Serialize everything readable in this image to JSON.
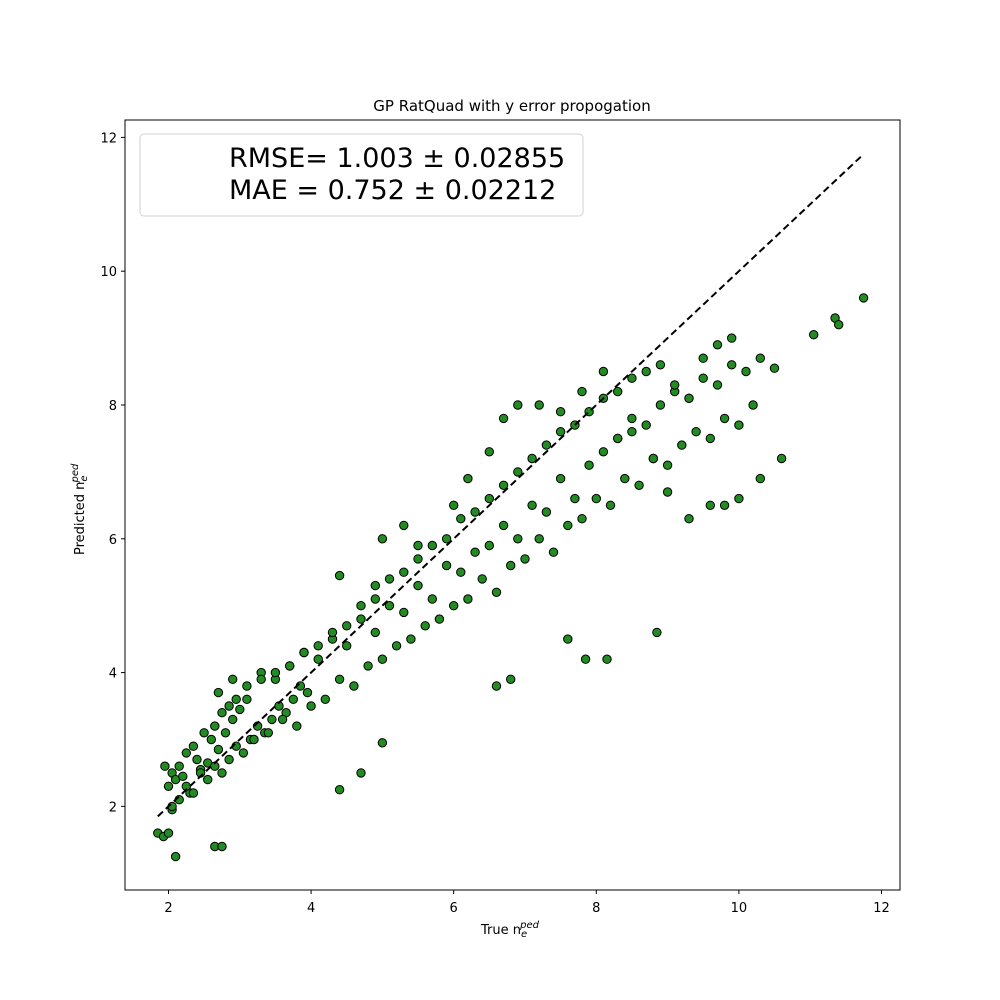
{
  "chart_data": {
    "type": "scatter",
    "title": "GP RatQuad with y error propogation",
    "xlabel": {
      "main": "True n",
      "sub": "e",
      "sup": "ped"
    },
    "ylabel": {
      "main": "Predicted n",
      "sub": "e",
      "sup": "ped"
    },
    "xlim": [
      1.39,
      12.26
    ],
    "ylim": [
      0.75,
      12.26
    ],
    "xticks": [
      2,
      4,
      6,
      8,
      10,
      12
    ],
    "yticks": [
      2,
      4,
      6,
      8,
      10,
      12
    ],
    "grid": false,
    "legend_placement": "top-left",
    "annotation": {
      "line1": "RMSE= 1.003 ± 0.02855",
      "line2": "MAE = 0.752 ± 0.02212"
    },
    "reference_line": {
      "style": "dashed",
      "color": "#000000",
      "x": [
        1.85,
        11.75
      ],
      "y": [
        1.85,
        11.75
      ]
    },
    "series": [
      {
        "marker_color": "#228B22",
        "edge_color": "#000000",
        "x": [
          1.85,
          1.93,
          1.95,
          2.0,
          2.05,
          2.05,
          2.1,
          2.15,
          2.2,
          2.25,
          2.3,
          2.35,
          2.4,
          2.45,
          2.5,
          2.55,
          2.6,
          2.65,
          2.7,
          2.75,
          2.8,
          2.85,
          2.9,
          2.95,
          3.0,
          2.05,
          2.15,
          2.25,
          2.35,
          2.45,
          2.55,
          2.65,
          2.75,
          2.85,
          2.95,
          3.05,
          3.15,
          3.25,
          3.35,
          3.45,
          3.55,
          3.65,
          3.75,
          3.85,
          3.95,
          2.7,
          2.9,
          3.1,
          3.3,
          3.5,
          3.7,
          3.9,
          4.1,
          4.3,
          4.5,
          4.7,
          4.9,
          5.1,
          5.3,
          5.5,
          5.7,
          5.9,
          6.1,
          6.3,
          6.5,
          6.7,
          6.9,
          7.1,
          7.3,
          7.5,
          7.7,
          7.9,
          8.1,
          8.3,
          8.5,
          8.7,
          8.9,
          9.1,
          9.3,
          9.5,
          9.7,
          9.9,
          10.1,
          10.3,
          10.5,
          3.2,
          3.4,
          3.6,
          3.8,
          4.0,
          4.2,
          4.4,
          4.6,
          4.8,
          5.0,
          5.2,
          5.4,
          5.6,
          5.8,
          6.0,
          6.2,
          6.4,
          6.6,
          6.8,
          7.0,
          7.2,
          7.4,
          7.6,
          7.8,
          8.0,
          8.2,
          8.4,
          8.6,
          8.8,
          9.0,
          9.2,
          9.4,
          9.6,
          9.8,
          10.0,
          10.2,
          3.1,
          3.3,
          3.5,
          3.7,
          3.9,
          4.1,
          4.3,
          4.5,
          4.7,
          4.9,
          5.1,
          5.3,
          5.5,
          5.7,
          5.9,
          6.1,
          6.3,
          6.5,
          6.7,
          6.9,
          7.1,
          7.3,
          7.5,
          7.7,
          7.9,
          8.1,
          8.3,
          8.5,
          8.7,
          8.9,
          9.1,
          9.3,
          9.5,
          9.7,
          9.9,
          4.4,
          4.9,
          5.0,
          5.3,
          5.5,
          6.0,
          6.2,
          6.5,
          6.7,
          6.9,
          7.2,
          7.5,
          7.8,
          8.1,
          8.3,
          8.5,
          8.8,
          9.0,
          9.3,
          9.6,
          9.8,
          10.0,
          10.3,
          10.6,
          11.05,
          11.35,
          11.4,
          11.75,
          8.85,
          8.15,
          7.85,
          7.6,
          6.8,
          6.6,
          4.4,
          4.7,
          5.0,
          2.1,
          2.0,
          2.65,
          2.75
        ],
        "y": [
          1.6,
          1.55,
          2.6,
          2.3,
          1.95,
          2.5,
          2.4,
          2.6,
          2.45,
          2.8,
          2.2,
          2.9,
          2.7,
          2.55,
          3.1,
          2.65,
          3.0,
          3.2,
          2.85,
          3.4,
          3.1,
          3.5,
          3.3,
          3.6,
          3.45,
          2.0,
          2.1,
          2.3,
          2.2,
          2.5,
          2.4,
          2.6,
          2.5,
          2.7,
          2.9,
          2.8,
          3.0,
          3.2,
          3.1,
          3.3,
          3.5,
          3.4,
          3.6,
          3.8,
          3.7,
          3.7,
          3.9,
          3.6,
          4.0,
          3.9,
          4.1,
          4.3,
          4.2,
          4.5,
          4.4,
          4.8,
          4.6,
          5.0,
          4.9,
          5.3,
          5.1,
          5.6,
          5.5,
          5.8,
          5.9,
          6.2,
          6.0,
          6.5,
          6.4,
          6.9,
          6.6,
          7.1,
          7.3,
          7.5,
          7.8,
          7.7,
          8.0,
          8.2,
          8.1,
          8.4,
          8.3,
          8.6,
          8.5,
          8.7,
          8.55,
          3.0,
          3.1,
          3.3,
          3.2,
          3.5,
          3.6,
          3.9,
          3.8,
          4.1,
          4.2,
          4.4,
          4.5,
          4.7,
          4.8,
          5.0,
          5.1,
          5.4,
          5.2,
          5.6,
          5.7,
          6.0,
          5.8,
          6.2,
          6.3,
          6.6,
          6.5,
          6.9,
          6.8,
          7.2,
          7.1,
          7.4,
          7.6,
          7.5,
          7.8,
          7.7,
          8.0,
          3.8,
          3.9,
          4.0,
          4.1,
          4.3,
          4.4,
          4.6,
          4.7,
          5.0,
          5.1,
          5.4,
          5.5,
          5.7,
          5.9,
          6.0,
          6.3,
          6.4,
          6.6,
          6.8,
          7.0,
          7.2,
          7.4,
          7.6,
          7.7,
          7.9,
          8.1,
          8.2,
          8.4,
          8.5,
          8.6,
          8.3,
          8.1,
          8.7,
          8.9,
          9.0,
          5.45,
          5.3,
          6.0,
          6.2,
          5.9,
          6.5,
          6.9,
          7.3,
          7.8,
          8.0,
          8.0,
          7.9,
          8.2,
          8.5,
          7.5,
          7.6,
          7.2,
          6.7,
          6.3,
          6.5,
          6.5,
          6.6,
          6.9,
          7.2,
          9.05,
          9.3,
          9.2,
          9.6,
          4.6,
          4.2,
          4.2,
          4.5,
          3.9,
          3.8,
          2.25,
          2.5,
          2.95,
          1.25,
          1.6,
          1.4,
          1.4
        ]
      }
    ]
  }
}
